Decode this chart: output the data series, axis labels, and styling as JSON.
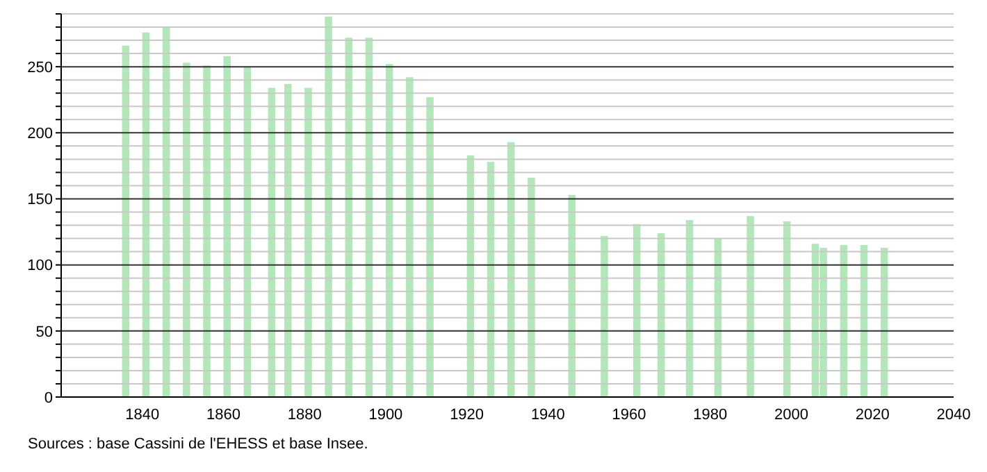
{
  "chart_data": {
    "type": "bar",
    "x": [
      1836,
      1841,
      1846,
      1851,
      1856,
      1861,
      1866,
      1872,
      1876,
      1881,
      1886,
      1891,
      1896,
      1901,
      1906,
      1911,
      1921,
      1926,
      1931,
      1936,
      1946,
      1954,
      1962,
      1968,
      1975,
      1982,
      1990,
      1999,
      2006,
      2008,
      2013,
      2018,
      2023
    ],
    "values": [
      266,
      276,
      280,
      253,
      251,
      258,
      250,
      234,
      237,
      234,
      288,
      272,
      272,
      252,
      242,
      227,
      183,
      178,
      193,
      166,
      153,
      122,
      131,
      124,
      134,
      120,
      137,
      133,
      116,
      113,
      115,
      115,
      113
    ],
    "color": "#b3e6b8",
    "xlim": [
      1820,
      2040
    ],
    "xticks": [
      1840,
      1860,
      1880,
      1900,
      1920,
      1940,
      1960,
      1980,
      2000,
      2020,
      2040
    ],
    "ylim": [
      0,
      290
    ],
    "yticks": [
      0,
      {
        "value": 10,
        "label": null
      },
      {
        "value": 20,
        "label": null
      },
      {
        "value": 30,
        "label": null
      },
      {
        "value": 40,
        "label": null
      },
      50,
      {
        "value": 60,
        "label": null
      },
      {
        "value": 70,
        "label": null
      },
      {
        "value": 80,
        "label": null
      },
      {
        "value": 90,
        "label": null
      },
      100,
      {
        "value": 110,
        "label": null
      },
      {
        "value": 120,
        "label": null
      },
      {
        "value": 130,
        "label": null
      },
      {
        "value": 140,
        "label": null
      },
      150,
      {
        "value": 160,
        "label": null
      },
      {
        "value": 170,
        "label": null
      },
      {
        "value": 180,
        "label": null
      },
      {
        "value": 190,
        "label": null
      },
      200,
      {
        "value": 210,
        "label": null
      },
      {
        "value": 220,
        "label": null
      },
      {
        "value": 230,
        "label": null
      },
      {
        "value": 240,
        "label": null
      },
      250,
      {
        "value": 260,
        "label": null
      },
      {
        "value": 270,
        "label": null
      },
      {
        "value": 280,
        "label": null
      },
      {
        "value": 290,
        "label": null
      }
    ],
    "grid": true,
    "annotations": [
      "Sources : base Cassini de l'EHESS et base Insee."
    ]
  }
}
